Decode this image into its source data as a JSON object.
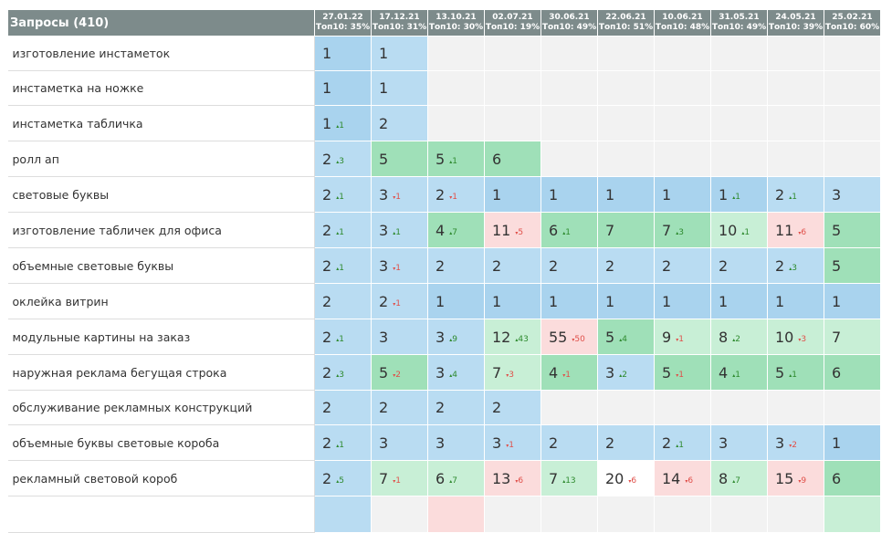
{
  "header": {
    "queries_label": "Запросы (410)",
    "columns": [
      {
        "date": "27.01.22",
        "top": "Топ10: 35%"
      },
      {
        "date": "17.12.21",
        "top": "Топ10: 31%"
      },
      {
        "date": "13.10.21",
        "top": "Топ10: 30%"
      },
      {
        "date": "02.07.21",
        "top": "Топ10: 19%"
      },
      {
        "date": "30.06.21",
        "top": "Топ10: 49%"
      },
      {
        "date": "22.06.21",
        "top": "Топ10: 51%"
      },
      {
        "date": "10.06.21",
        "top": "Топ10: 48%"
      },
      {
        "date": "31.05.21",
        "top": "Топ10: 49%"
      },
      {
        "date": "24.05.21",
        "top": "Топ10: 39%"
      },
      {
        "date": "25.02.21",
        "top": "Топ10: 60%"
      }
    ]
  },
  "colors": {
    "header_bg": "#7d8b8b",
    "blue": "#a9d3ee",
    "light_blue": "#b9dcf2",
    "green": "#9fe0b8",
    "light_green": "#c8efd6",
    "pink": "#fbdcdc",
    "empty": "#f2f2f2",
    "delta_up": "#2e8a2e",
    "delta_down": "#e0504a"
  },
  "rows": [
    {
      "query": "изготовление инстаметок",
      "cells": [
        {
          "v": "1",
          "c": "blue"
        },
        {
          "v": "1",
          "c": "lblue"
        },
        {
          "c": "empty"
        },
        {
          "c": "empty"
        },
        {
          "c": "empty"
        },
        {
          "c": "empty"
        },
        {
          "c": "empty"
        },
        {
          "c": "empty"
        },
        {
          "c": "empty"
        },
        {
          "c": "empty"
        }
      ]
    },
    {
      "query": "инстаметка на ножке",
      "cells": [
        {
          "v": "1",
          "c": "blue"
        },
        {
          "v": "1",
          "c": "lblue"
        },
        {
          "c": "empty"
        },
        {
          "c": "empty"
        },
        {
          "c": "empty"
        },
        {
          "c": "empty"
        },
        {
          "c": "empty"
        },
        {
          "c": "empty"
        },
        {
          "c": "empty"
        },
        {
          "c": "empty"
        }
      ]
    },
    {
      "query": "инстаметка табличка",
      "cells": [
        {
          "v": "1",
          "d": "1",
          "dir": "up",
          "c": "blue"
        },
        {
          "v": "2",
          "c": "lblue"
        },
        {
          "c": "empty"
        },
        {
          "c": "empty"
        },
        {
          "c": "empty"
        },
        {
          "c": "empty"
        },
        {
          "c": "empty"
        },
        {
          "c": "empty"
        },
        {
          "c": "empty"
        },
        {
          "c": "empty"
        }
      ]
    },
    {
      "query": "ролл ап",
      "cells": [
        {
          "v": "2",
          "d": "3",
          "dir": "up",
          "c": "lblue"
        },
        {
          "v": "5",
          "c": "green"
        },
        {
          "v": "5",
          "d": "1",
          "dir": "up",
          "c": "green"
        },
        {
          "v": "6",
          "c": "green"
        },
        {
          "c": "empty"
        },
        {
          "c": "empty"
        },
        {
          "c": "empty"
        },
        {
          "c": "empty"
        },
        {
          "c": "empty"
        },
        {
          "c": "empty"
        }
      ]
    },
    {
      "query": "световые буквы",
      "cells": [
        {
          "v": "2",
          "d": "1",
          "dir": "up",
          "c": "lblue"
        },
        {
          "v": "3",
          "d": "1",
          "dir": "down",
          "c": "lblue"
        },
        {
          "v": "2",
          "d": "1",
          "dir": "down",
          "c": "lblue"
        },
        {
          "v": "1",
          "c": "blue"
        },
        {
          "v": "1",
          "c": "blue"
        },
        {
          "v": "1",
          "c": "blue"
        },
        {
          "v": "1",
          "c": "blue"
        },
        {
          "v": "1",
          "d": "1",
          "dir": "up",
          "c": "blue"
        },
        {
          "v": "2",
          "d": "1",
          "dir": "up",
          "c": "lblue"
        },
        {
          "v": "3",
          "c": "lblue"
        }
      ]
    },
    {
      "query": "изготовление табличек для офиса",
      "cells": [
        {
          "v": "2",
          "d": "1",
          "dir": "up",
          "c": "lblue"
        },
        {
          "v": "3",
          "d": "1",
          "dir": "up",
          "c": "lblue"
        },
        {
          "v": "4",
          "d": "7",
          "dir": "up",
          "c": "green"
        },
        {
          "v": "11",
          "d": "5",
          "dir": "down",
          "c": "pink"
        },
        {
          "v": "6",
          "d": "1",
          "dir": "up",
          "c": "green"
        },
        {
          "v": "7",
          "c": "green"
        },
        {
          "v": "7",
          "d": "3",
          "dir": "up",
          "c": "green"
        },
        {
          "v": "10",
          "d": "1",
          "dir": "up",
          "c": "lgreen"
        },
        {
          "v": "11",
          "d": "6",
          "dir": "down",
          "c": "pink"
        },
        {
          "v": "5",
          "c": "green"
        }
      ]
    },
    {
      "query": "объемные световые буквы",
      "cells": [
        {
          "v": "2",
          "d": "1",
          "dir": "up",
          "c": "lblue"
        },
        {
          "v": "3",
          "d": "1",
          "dir": "down",
          "c": "lblue"
        },
        {
          "v": "2",
          "c": "lblue"
        },
        {
          "v": "2",
          "c": "lblue"
        },
        {
          "v": "2",
          "c": "lblue"
        },
        {
          "v": "2",
          "c": "lblue"
        },
        {
          "v": "2",
          "c": "lblue"
        },
        {
          "v": "2",
          "c": "lblue"
        },
        {
          "v": "2",
          "d": "3",
          "dir": "up",
          "c": "lblue"
        },
        {
          "v": "5",
          "c": "green"
        }
      ]
    },
    {
      "query": "оклейка витрин",
      "cells": [
        {
          "v": "2",
          "c": "lblue"
        },
        {
          "v": "2",
          "d": "1",
          "dir": "down",
          "c": "lblue"
        },
        {
          "v": "1",
          "c": "blue"
        },
        {
          "v": "1",
          "c": "blue"
        },
        {
          "v": "1",
          "c": "blue"
        },
        {
          "v": "1",
          "c": "blue"
        },
        {
          "v": "1",
          "c": "blue"
        },
        {
          "v": "1",
          "c": "blue"
        },
        {
          "v": "1",
          "c": "blue"
        },
        {
          "v": "1",
          "c": "blue"
        }
      ]
    },
    {
      "query": "модульные картины на заказ",
      "cells": [
        {
          "v": "2",
          "d": "1",
          "dir": "up",
          "c": "lblue"
        },
        {
          "v": "3",
          "c": "lblue"
        },
        {
          "v": "3",
          "d": "9",
          "dir": "up",
          "c": "lblue"
        },
        {
          "v": "12",
          "d": "43",
          "dir": "up",
          "c": "lgreen"
        },
        {
          "v": "55",
          "d": "50",
          "dir": "down",
          "c": "pink"
        },
        {
          "v": "5",
          "d": "4",
          "dir": "up",
          "c": "green"
        },
        {
          "v": "9",
          "d": "1",
          "dir": "down",
          "c": "lgreen"
        },
        {
          "v": "8",
          "d": "2",
          "dir": "up",
          "c": "lgreen"
        },
        {
          "v": "10",
          "d": "3",
          "dir": "down",
          "c": "lgreen"
        },
        {
          "v": "7",
          "c": "lgreen"
        }
      ]
    },
    {
      "query": "наружная реклама бегущая строка",
      "cells": [
        {
          "v": "2",
          "d": "3",
          "dir": "up",
          "c": "lblue"
        },
        {
          "v": "5",
          "d": "2",
          "dir": "down",
          "c": "green"
        },
        {
          "v": "3",
          "d": "4",
          "dir": "up",
          "c": "lblue"
        },
        {
          "v": "7",
          "d": "3",
          "dir": "down",
          "c": "lgreen"
        },
        {
          "v": "4",
          "d": "1",
          "dir": "down",
          "c": "green"
        },
        {
          "v": "3",
          "d": "2",
          "dir": "up",
          "c": "lblue"
        },
        {
          "v": "5",
          "d": "1",
          "dir": "down",
          "c": "green"
        },
        {
          "v": "4",
          "d": "1",
          "dir": "up",
          "c": "green"
        },
        {
          "v": "5",
          "d": "1",
          "dir": "up",
          "c": "green"
        },
        {
          "v": "6",
          "c": "green"
        }
      ]
    },
    {
      "query": "обслуживание рекламных конструкций",
      "cells": [
        {
          "v": "2",
          "c": "lblue"
        },
        {
          "v": "2",
          "c": "lblue"
        },
        {
          "v": "2",
          "c": "lblue"
        },
        {
          "v": "2",
          "c": "lblue"
        },
        {
          "c": "empty"
        },
        {
          "c": "empty"
        },
        {
          "c": "empty"
        },
        {
          "c": "empty"
        },
        {
          "c": "empty"
        },
        {
          "c": "empty"
        }
      ]
    },
    {
      "query": "объемные буквы световые короба",
      "cells": [
        {
          "v": "2",
          "d": "1",
          "dir": "up",
          "c": "lblue"
        },
        {
          "v": "3",
          "c": "lblue"
        },
        {
          "v": "3",
          "c": "lblue"
        },
        {
          "v": "3",
          "d": "1",
          "dir": "down",
          "c": "lblue"
        },
        {
          "v": "2",
          "c": "lblue"
        },
        {
          "v": "2",
          "c": "lblue"
        },
        {
          "v": "2",
          "d": "1",
          "dir": "up",
          "c": "lblue"
        },
        {
          "v": "3",
          "c": "lblue"
        },
        {
          "v": "3",
          "d": "2",
          "dir": "down",
          "c": "lblue"
        },
        {
          "v": "1",
          "c": "blue"
        }
      ]
    },
    {
      "query": "рекламный световой короб",
      "cells": [
        {
          "v": "2",
          "d": "5",
          "dir": "up",
          "c": "lblue"
        },
        {
          "v": "7",
          "d": "1",
          "dir": "down",
          "c": "lgreen"
        },
        {
          "v": "6",
          "d": "7",
          "dir": "up",
          "c": "lgreen"
        },
        {
          "v": "13",
          "d": "6",
          "dir": "down",
          "c": "pink"
        },
        {
          "v": "7",
          "d": "13",
          "dir": "up",
          "c": "lgreen"
        },
        {
          "v": "20",
          "d": "6",
          "dir": "down",
          "c": "white"
        },
        {
          "v": "14",
          "d": "6",
          "dir": "down",
          "c": "pink"
        },
        {
          "v": "8",
          "d": "7",
          "dir": "up",
          "c": "lgreen"
        },
        {
          "v": "15",
          "d": "9",
          "dir": "down",
          "c": "pink"
        },
        {
          "v": "6",
          "c": "green"
        }
      ]
    },
    {
      "query": "",
      "cells": [
        {
          "c": "lblue"
        },
        {
          "c": "empty"
        },
        {
          "c": "pink"
        },
        {
          "c": "empty"
        },
        {
          "c": "empty"
        },
        {
          "c": "empty"
        },
        {
          "c": "empty"
        },
        {
          "c": "empty"
        },
        {
          "c": "empty"
        },
        {
          "c": "lgreen"
        }
      ]
    }
  ]
}
